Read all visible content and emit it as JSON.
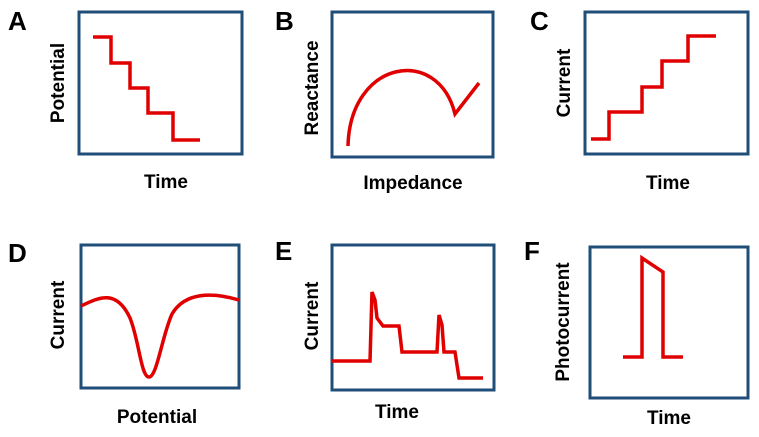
{
  "figure": {
    "colors": {
      "frame": "#1f4e79",
      "curve": "#e00000",
      "text": "#000000"
    },
    "panels": [
      {
        "letter": "A",
        "xlabel": "Time",
        "ylabel": "Potential",
        "curve": "staircase-descending"
      },
      {
        "letter": "B",
        "xlabel": "Impedance",
        "ylabel": "Reactance",
        "curve": "semicircle-with-diffusion-tail"
      },
      {
        "letter": "C",
        "xlabel": "Time",
        "ylabel": "Current",
        "curve": "staircase-ascending"
      },
      {
        "letter": "D",
        "xlabel": "Potential",
        "ylabel": "Current",
        "curve": "negative-peak"
      },
      {
        "letter": "E",
        "xlabel": "Time",
        "ylabel": "Current",
        "curve": "current-spikes-with-decay"
      },
      {
        "letter": "F",
        "xlabel": "Time",
        "ylabel": "Photocurrent",
        "curve": "light-on-off-pulse"
      }
    ]
  }
}
